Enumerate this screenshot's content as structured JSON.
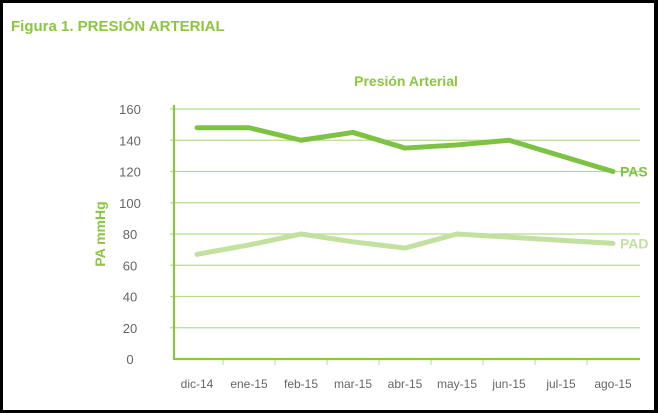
{
  "figure_title": "Figura 1. PRESIÓN ARTERIAL",
  "chart_data": {
    "type": "line",
    "title": "Presión Arterial",
    "xlabel": "",
    "ylabel": "PA mmHg",
    "categories": [
      "dic-14",
      "ene-15",
      "feb-15",
      "mar-15",
      "abr-15",
      "may-15",
      "jun-15",
      "jul-15",
      "ago-15"
    ],
    "ylim": [
      0,
      160
    ],
    "yticks": [
      0,
      20,
      40,
      60,
      80,
      100,
      120,
      140,
      160
    ],
    "grid": true,
    "legend": "inline-right",
    "series": [
      {
        "name": "PAS",
        "color": "#7dc242",
        "values": [
          148,
          148,
          140,
          145,
          135,
          137,
          140,
          130,
          120
        ]
      },
      {
        "name": "PAD",
        "color": "#c2e0a0",
        "values": [
          67,
          73,
          80,
          75,
          71,
          80,
          78,
          76,
          74
        ]
      }
    ]
  },
  "colors": {
    "accent": "#8cc63f",
    "axis": "#8cc63f",
    "grid": "#b5dc8a",
    "tick_text": "#666666"
  }
}
